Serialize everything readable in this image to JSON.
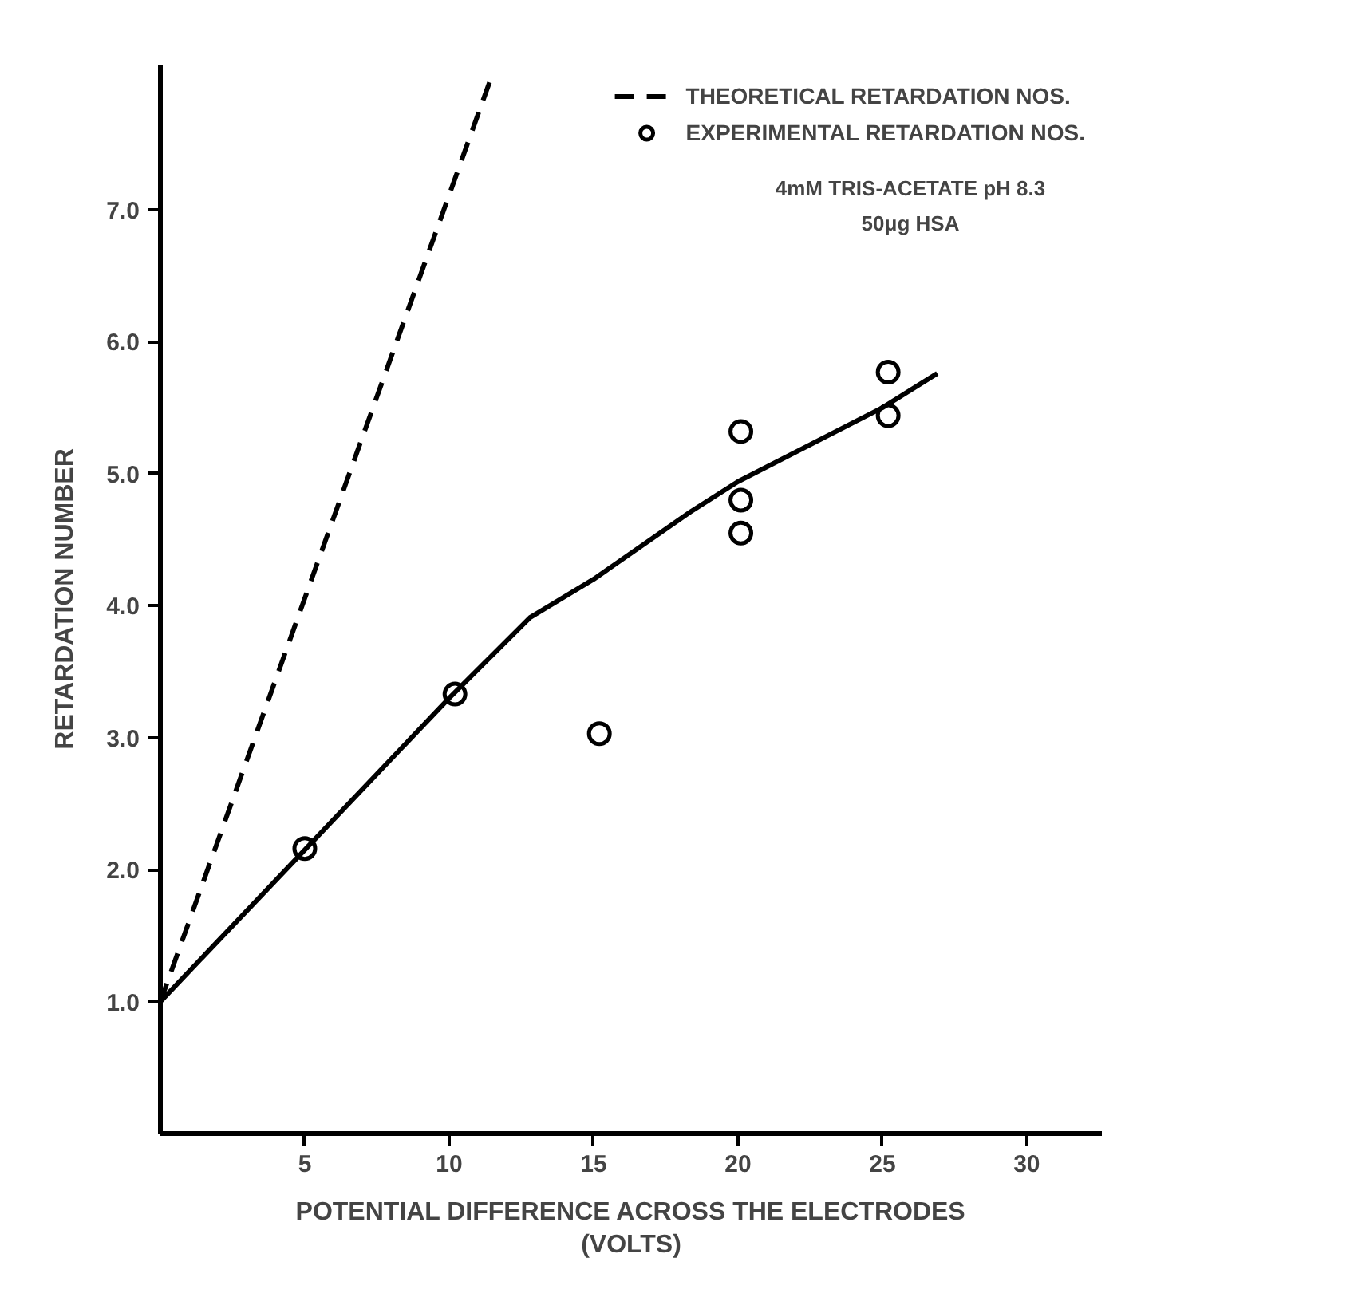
{
  "chart_data": {
    "type": "scatter",
    "xlabel": "POTENTIAL DIFFERENCE ACROSS THE ELECTRODES\n(VOLTS)",
    "ylabel": "RETARDATION NUMBER",
    "xlim": [
      0,
      32.6
    ],
    "xticks": [
      5,
      10,
      15,
      20,
      25,
      30
    ],
    "ylim": [
      0,
      8.1
    ],
    "yticks": [
      {
        "value": 1,
        "label": "1.0"
      },
      {
        "value": 2,
        "label": "2.0"
      },
      {
        "value": 3,
        "label": "3.0"
      },
      {
        "value": 4,
        "label": "4.0"
      },
      {
        "value": 5,
        "label": "5.0"
      },
      {
        "value": 6,
        "label": "6.0"
      },
      {
        "value": 7,
        "label": "7.0"
      }
    ],
    "grid": false,
    "legend": "top right",
    "series": [
      {
        "name": "THEORETICAL RETARDATION NOS.",
        "type": "line",
        "line_style": "dashed",
        "marker": "none",
        "color": "#000000",
        "x": [
          0,
          11.5
        ],
        "values": [
          1.0,
          8.03
        ]
      },
      {
        "name": "EXPERIMENTAL RETARDATION NOS.",
        "marker": "circle",
        "color": "#000000",
        "x": [
          5,
          10.2,
          15.2,
          20.1,
          20.1,
          20.1,
          25.2,
          25.2
        ],
        "values": [
          2.16,
          3.33,
          3.03,
          5.32,
          4.8,
          4.55,
          5.77,
          5.44
        ]
      },
      {
        "type": "line",
        "line_style": "solid",
        "marker": "none",
        "color": "#000000",
        "x": [
          0,
          5,
          10,
          12.8,
          15,
          18.35,
          20,
          25,
          26.9
        ],
        "values": [
          1.0,
          2.15,
          3.3,
          3.91,
          4.2,
          4.71,
          4.94,
          5.5,
          5.76
        ]
      }
    ],
    "annotations": [
      "4mM TRIS-ACETATE pH 8.3",
      "50μg HSA"
    ]
  }
}
